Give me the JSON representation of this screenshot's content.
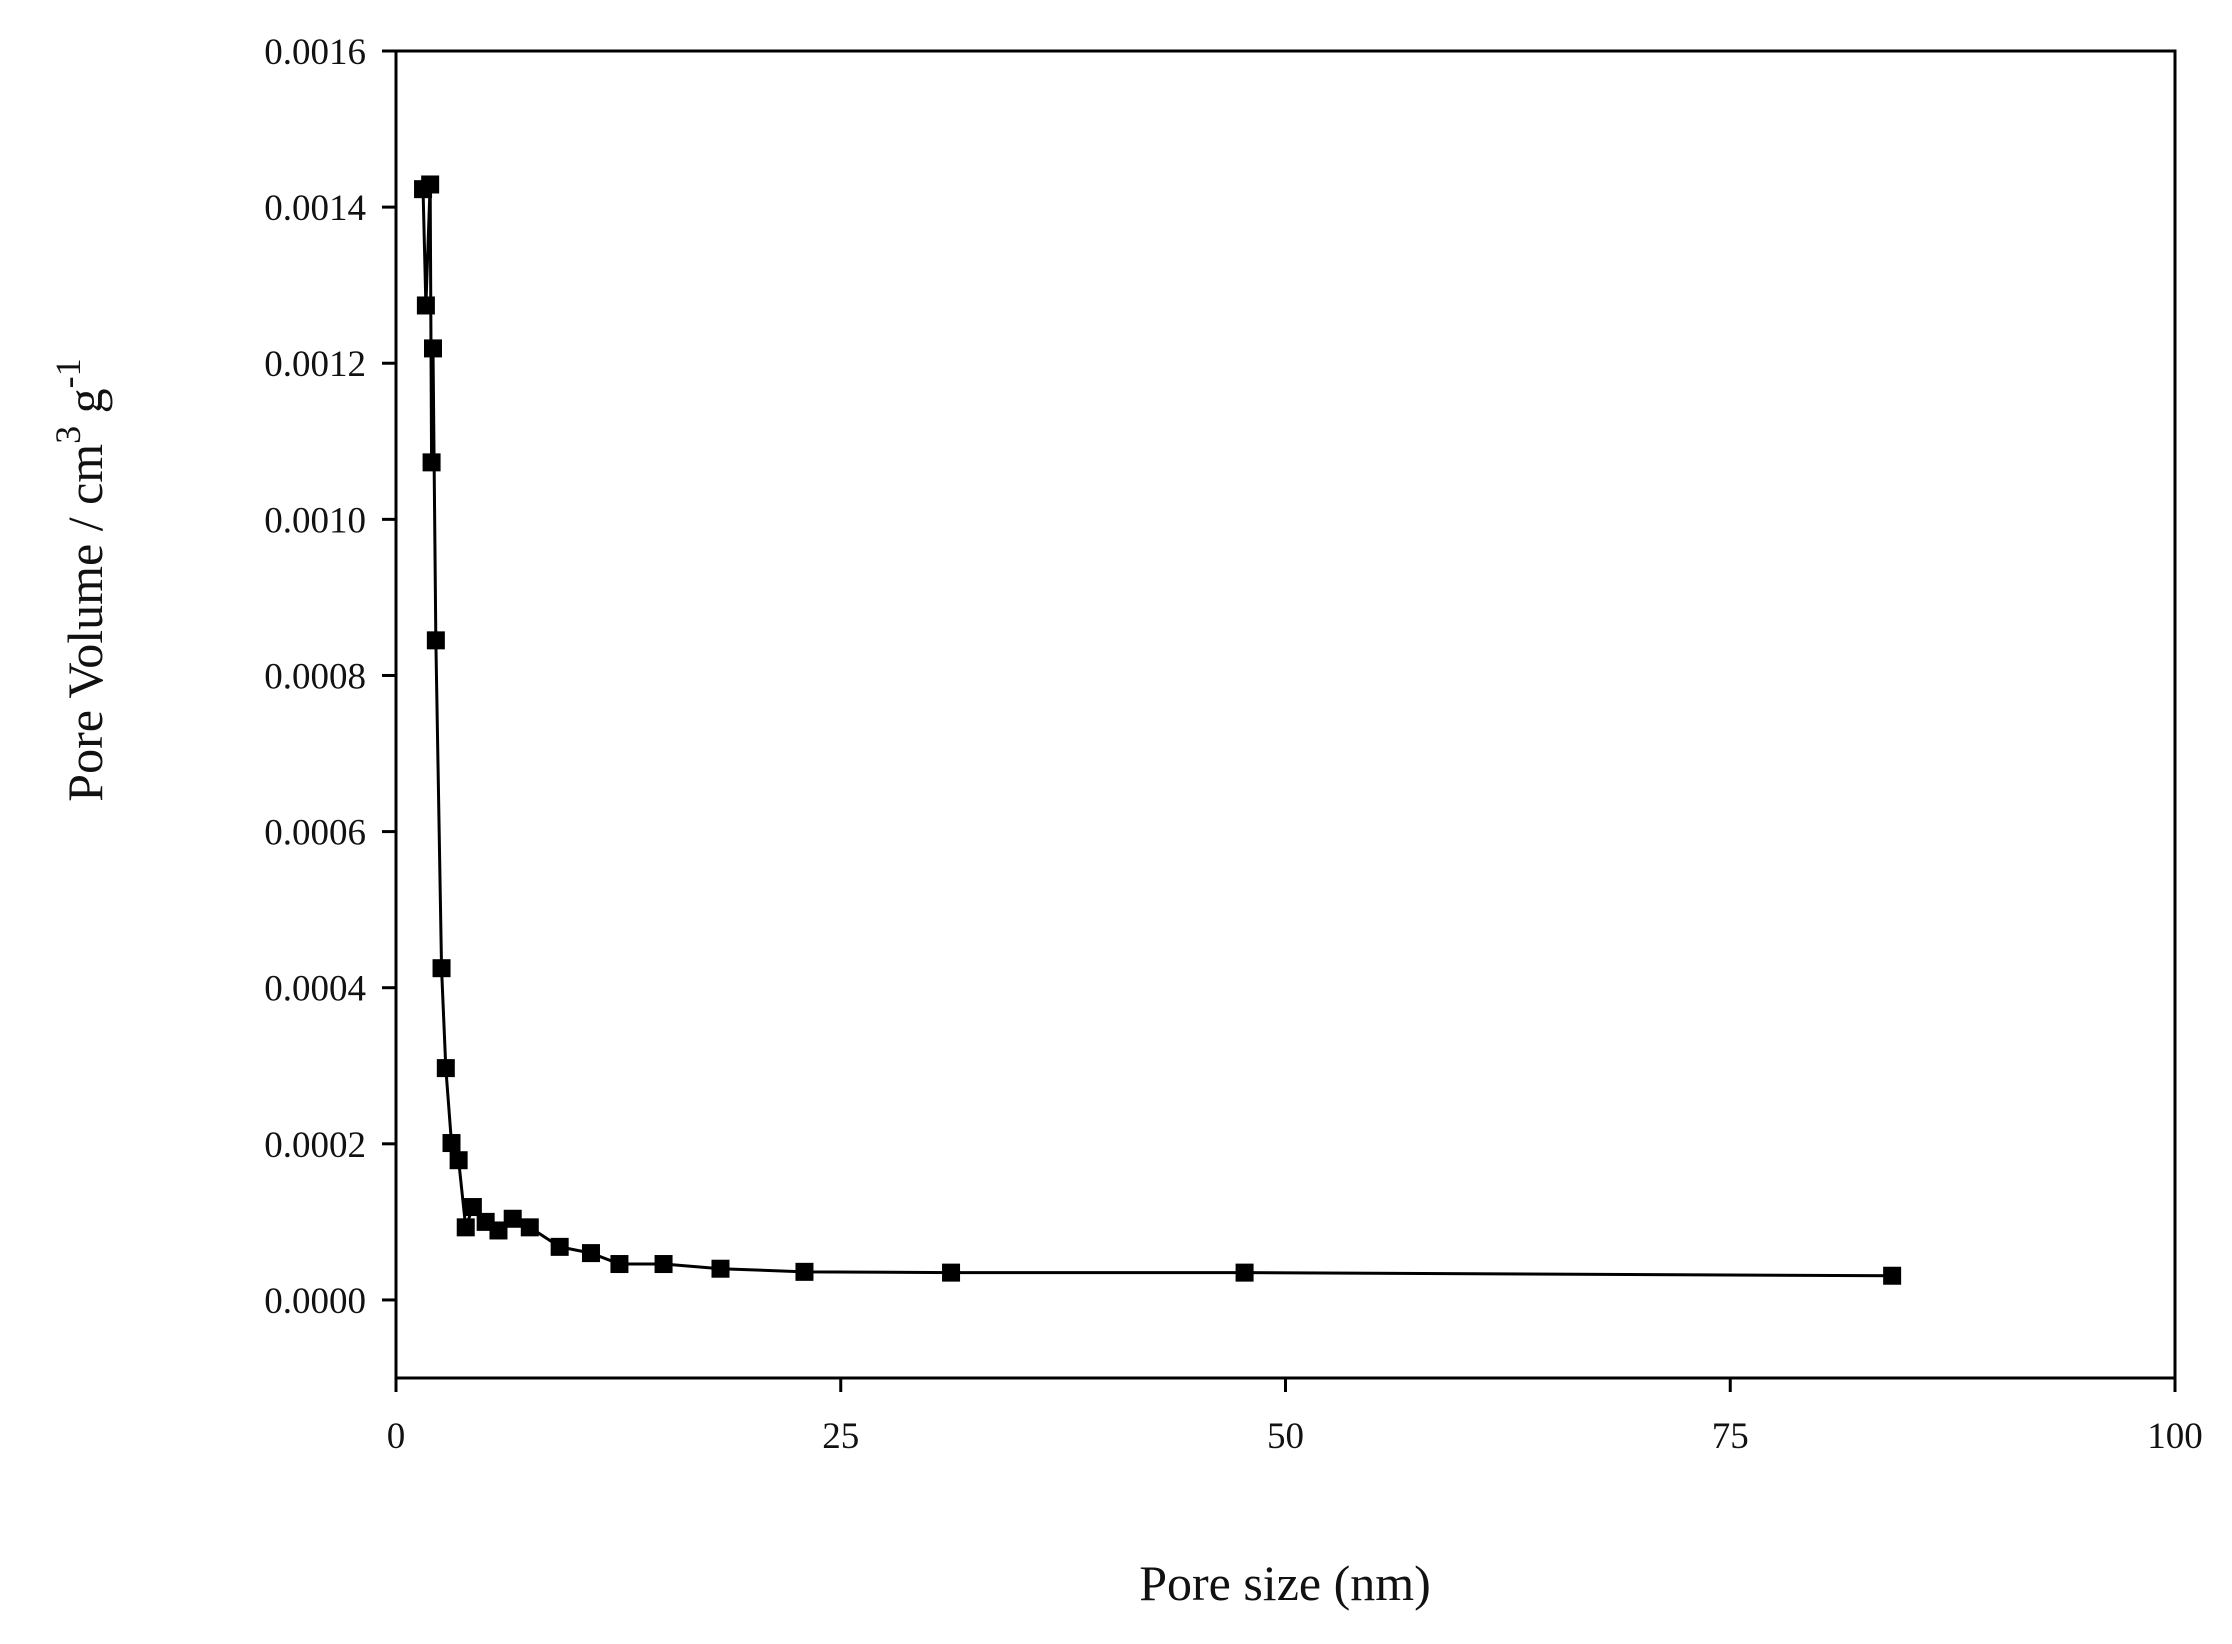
{
  "chart_data": {
    "type": "line",
    "x_label": "Pore size (nm)",
    "y_label": [
      "Pore Volume / cm",
      "3",
      " g",
      "-1"
    ],
    "series": [
      {
        "color": "#000000",
        "x": [
          1.52,
          1.68,
          1.92,
          2.0,
          2.08,
          2.24,
          2.56,
          2.8,
          3.12,
          3.52,
          3.92,
          4.32,
          5.04,
          5.76,
          6.56,
          7.52,
          9.2,
          10.96,
          12.56,
          15.04,
          18.24,
          22.96,
          31.2,
          47.7,
          84.1
        ],
        "values": [
          0.001423,
          0.001274,
          0.001429,
          0.001073,
          0.001219,
          0.000845,
          0.000425,
          0.000297,
          0.000201,
          0.000179,
          9.3e-05,
          0.000119,
          0.0001,
          8.9e-05,
          0.000104,
          9.3e-05,
          6.8e-05,
          6e-05,
          4.6e-05,
          4.6e-05,
          4e-05,
          3.6e-05,
          3.5e-05,
          3.5e-05,
          3.1e-05
        ]
      }
    ],
    "xlim": [
      0,
      100
    ],
    "xticks": [
      0,
      25,
      50,
      75,
      100
    ],
    "ylim": [
      -0.0001,
      0.0016
    ],
    "yticks": [
      {
        "value": 0,
        "label": "0.0000"
      },
      {
        "value": 0.0002,
        "label": "0.0002"
      },
      {
        "value": 0.0004,
        "label": "0.0004"
      },
      {
        "value": 0.0006,
        "label": "0.0006"
      },
      {
        "value": 0.0008,
        "label": "0.0008"
      },
      {
        "value": 0.001,
        "label": "0.0010"
      },
      {
        "value": 0.0012,
        "label": "0.0012"
      },
      {
        "value": 0.0014,
        "label": "0.0014"
      },
      {
        "value": 0.0016,
        "label": "0.0016"
      }
    ],
    "grid": false
  }
}
